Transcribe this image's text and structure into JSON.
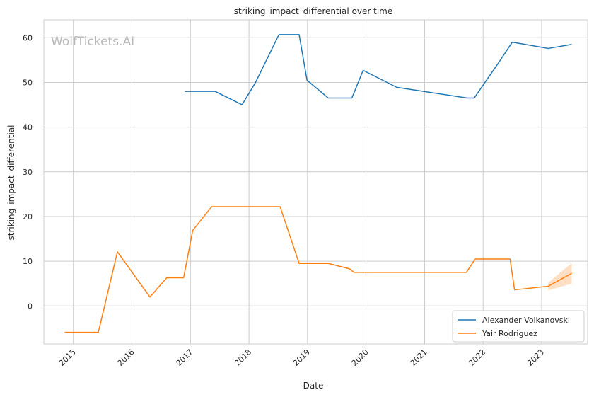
{
  "chart_data": {
    "type": "line",
    "title": "striking_impact_differential over time",
    "xlabel": "Date",
    "ylabel": "striking_impact_differential",
    "watermark": "WolfTickets.AI",
    "x_ticks": [
      "2015",
      "2016",
      "2017",
      "2018",
      "2019",
      "2020",
      "2021",
      "2022",
      "2023"
    ],
    "y_ticks": [
      "0",
      "10",
      "20",
      "30",
      "40",
      "50",
      "60"
    ],
    "xlim": [
      "2014-07-01",
      "2023-10-15"
    ],
    "ylim": [
      -8.5,
      64
    ],
    "grid": true,
    "legend_position": "bottom-right",
    "series": [
      {
        "name": "Alexander Volkanovski",
        "color": "#1f77b4",
        "points": [
          [
            "2016-11-26",
            48
          ],
          [
            "2017-06-03",
            48
          ],
          [
            "2017-11-19",
            45
          ],
          [
            "2018-02-11",
            50
          ],
          [
            "2018-07-07",
            60.7
          ],
          [
            "2018-11-10",
            60.7
          ],
          [
            "2018-12-29",
            50.5
          ],
          [
            "2019-05-11",
            46.5
          ],
          [
            "2019-10-05",
            46.5
          ],
          [
            "2019-12-14",
            52.7
          ],
          [
            "2020-07-11",
            48.9
          ],
          [
            "2021-09-25",
            46.5
          ],
          [
            "2021-11-06",
            46.5
          ],
          [
            "2022-04-09",
            54.5
          ],
          [
            "2022-07-02",
            59
          ],
          [
            "2023-02-11",
            57.6
          ],
          [
            "2023-07-08",
            58.5
          ]
        ]
      },
      {
        "name": "Yair Rodriguez",
        "color": "#ff7f0e",
        "points": [
          [
            "2014-11-08",
            -5.9
          ],
          [
            "2015-06-06",
            -5.9
          ],
          [
            "2015-10-03",
            12.1
          ],
          [
            "2016-04-23",
            2
          ],
          [
            "2016-08-06",
            6.3
          ],
          [
            "2016-11-19",
            6.3
          ],
          [
            "2017-01-15",
            16.9
          ],
          [
            "2017-05-13",
            22.2
          ],
          [
            "2018-07-14",
            22.2
          ],
          [
            "2018-11-10",
            9.5
          ],
          [
            "2019-05-11",
            9.5
          ],
          [
            "2019-09-21",
            8.3
          ],
          [
            "2019-10-19",
            7.5
          ],
          [
            "2021-09-18",
            7.5
          ],
          [
            "2021-11-13",
            10.5
          ],
          [
            "2022-06-18",
            10.5
          ],
          [
            "2022-07-16",
            3.6
          ],
          [
            "2023-02-11",
            4.4
          ],
          [
            "2023-07-08",
            7.3
          ]
        ],
        "band": [
          [
            "2023-02-11",
            3.5,
            5.2
          ],
          [
            "2023-07-08",
            5.0,
            9.6
          ]
        ]
      }
    ]
  }
}
